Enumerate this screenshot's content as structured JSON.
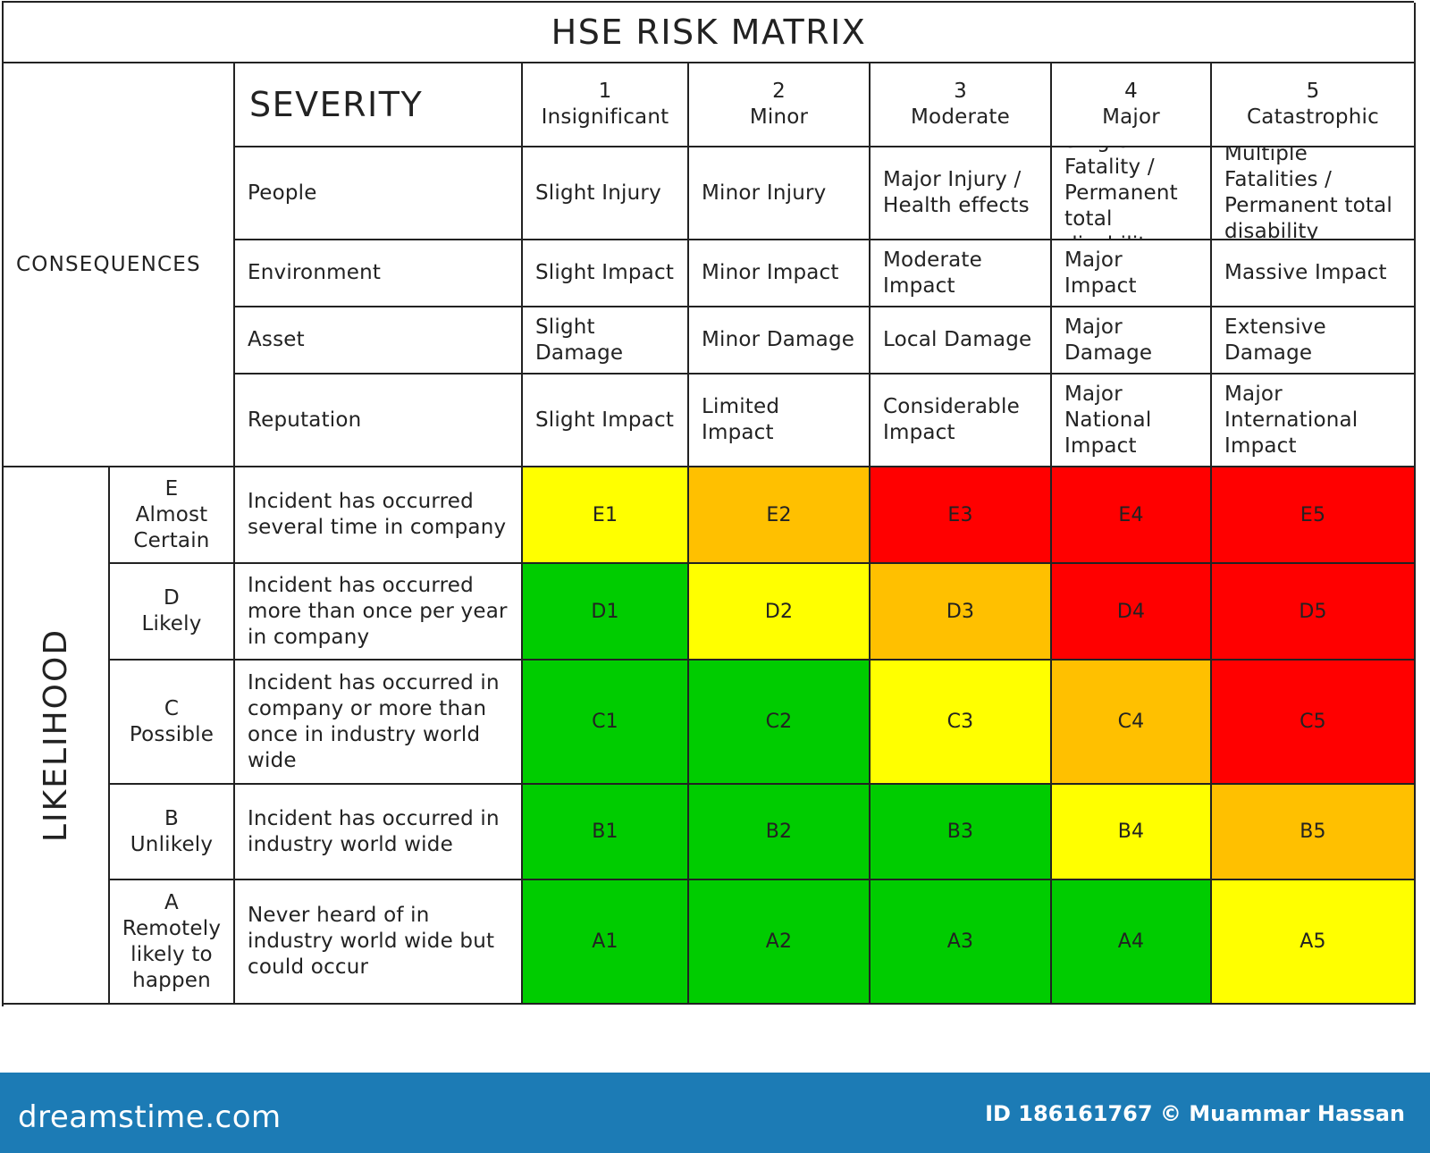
{
  "title": "HSE RISK MATRIX",
  "consequences_label": "CONSEQUENCES",
  "likelihood_label": "LIKELIHOOD",
  "severity": {
    "label": "SEVERITY",
    "levels": [
      {
        "number": "1",
        "name": "Insignificant"
      },
      {
        "number": "2",
        "name": "Minor"
      },
      {
        "number": "3",
        "name": "Moderate"
      },
      {
        "number": "4",
        "name": "Major"
      },
      {
        "number": "5",
        "name": "Catastrophic"
      }
    ]
  },
  "consequences": [
    {
      "category": "People",
      "values": [
        "Slight Injury",
        "Minor Injury",
        "Major Injury / Health effects",
        "Single Fatality / Permanent total disability",
        "Multiple Fatalities / Permanent total disability"
      ]
    },
    {
      "category": "Environment",
      "values": [
        "Slight Impact",
        "Minor Impact",
        "Moderate Impact",
        "Major Impact",
        "Massive Impact"
      ]
    },
    {
      "category": "Asset",
      "values": [
        "Slight Damage",
        "Minor Damage",
        "Local Damage",
        "Major Damage",
        "Extensive Damage"
      ]
    },
    {
      "category": "Reputation",
      "values": [
        "Slight Impact",
        "Limited Impact",
        "Considerable Impact",
        "Major National Impact",
        "Major International Impact"
      ]
    }
  ],
  "likelihood": [
    {
      "code": "E",
      "name": "Almost Certain",
      "description": "Incident has occurred several time in company",
      "cells": [
        "E1",
        "E2",
        "E3",
        "E4",
        "E5"
      ],
      "levels": [
        "yellow",
        "orange",
        "red",
        "red",
        "red"
      ]
    },
    {
      "code": "D",
      "name": "Likely",
      "description": "Incident has occurred more than once per year in company",
      "cells": [
        "D1",
        "D2",
        "D3",
        "D4",
        "D5"
      ],
      "levels": [
        "green",
        "yellow",
        "orange",
        "red",
        "red"
      ]
    },
    {
      "code": "C",
      "name": "Possible",
      "description": "Incident has occurred in company or more than once in industry world wide",
      "cells": [
        "C1",
        "C2",
        "C3",
        "C4",
        "C5"
      ],
      "levels": [
        "green",
        "green",
        "yellow",
        "orange",
        "red"
      ]
    },
    {
      "code": "B",
      "name": "Unlikely",
      "description": "Incident has occurred in industry world wide",
      "cells": [
        "B1",
        "B2",
        "B3",
        "B4",
        "B5"
      ],
      "levels": [
        "green",
        "green",
        "green",
        "yellow",
        "orange"
      ]
    },
    {
      "code": "A",
      "name": "Remotely likely to happen",
      "description": "Never heard of in industry world wide but could occur",
      "cells": [
        "A1",
        "A2",
        "A3",
        "A4",
        "A5"
      ],
      "levels": [
        "green",
        "green",
        "green",
        "green",
        "yellow"
      ]
    }
  ],
  "colors": {
    "green": "#00cc00",
    "yellow": "#ffff00",
    "orange": "#ffc000",
    "red": "#ff0000"
  },
  "footer": {
    "brand": "dreamstime.com",
    "credit": "ID 186161767 © Muammar Hassan"
  }
}
